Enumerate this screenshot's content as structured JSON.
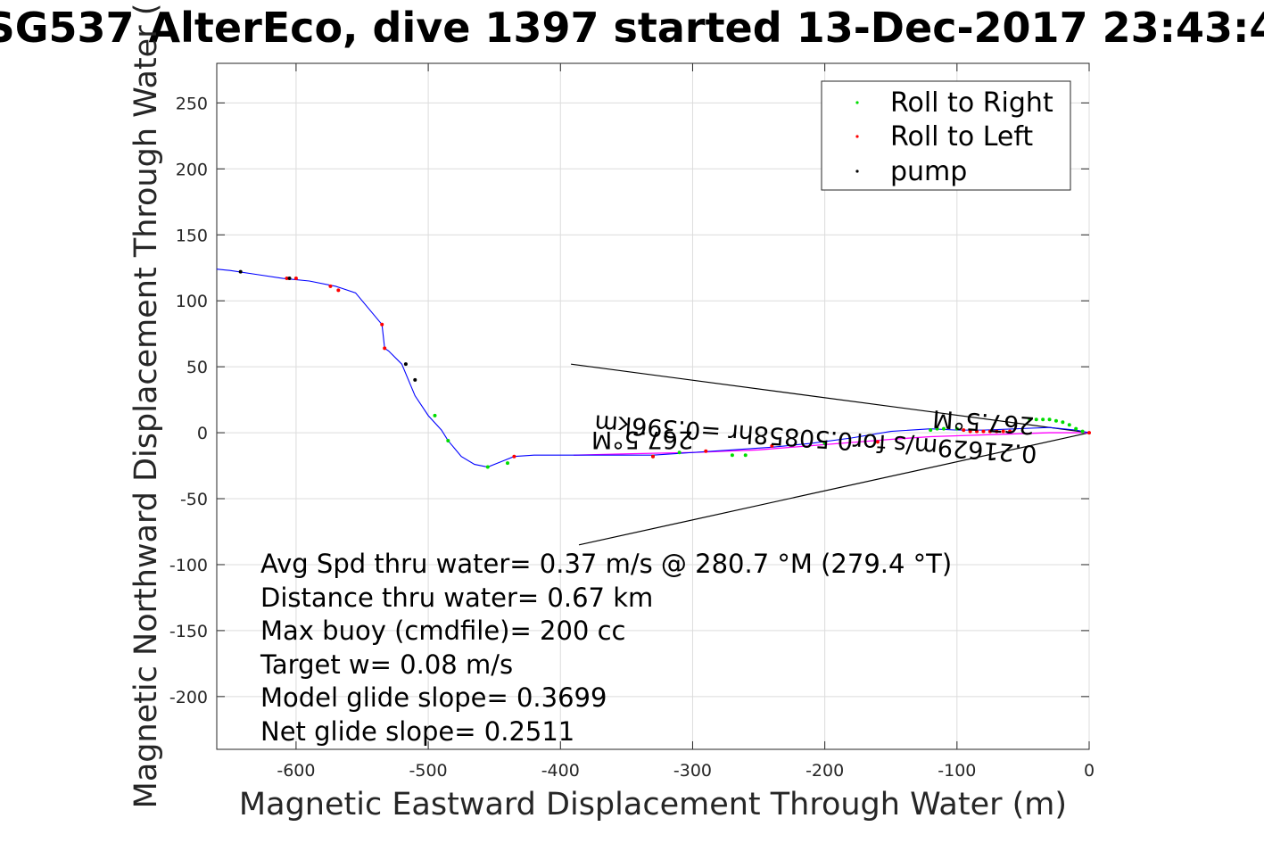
{
  "chart_data": {
    "type": "line",
    "title": "SG537 AlterEco, dive 1397 started 13-Dec-2017 23:43:4",
    "xlabel": "Magnetic Eastward Displacement Through Water (m)",
    "ylabel": "Magnetic Northward Displacement Through Water (",
    "xlim": [
      -660,
      0
    ],
    "ylim": [
      -240,
      280
    ],
    "xticks": [
      -600,
      -500,
      -400,
      -300,
      -200,
      -100,
      0
    ],
    "yticks": [
      -200,
      -150,
      -100,
      -50,
      0,
      50,
      100,
      150,
      200,
      250
    ],
    "grid": true,
    "legend": {
      "placement": "top-right",
      "entries": [
        "Roll to Right",
        "Roll to Left",
        "pump"
      ]
    },
    "colors": {
      "track": "#0000ff",
      "roll_right": "#00dd00",
      "roll_left": "#ff0000",
      "pump": "#000000",
      "current": "#ff00ff",
      "arrow": "#000000"
    },
    "track": {
      "name": "",
      "x": [
        0,
        -10,
        -30,
        -55,
        -80,
        -100,
        -120,
        -150,
        -180,
        -210,
        -240,
        -270,
        -300,
        -330,
        -360,
        -390,
        -420,
        -435,
        -445,
        -455,
        -465,
        -475,
        -485,
        -490,
        -500,
        -510,
        -515,
        -520,
        -530,
        -533,
        -535,
        -555,
        -570,
        -590,
        -610,
        -630,
        -650,
        -660
      ],
      "y": [
        0,
        2,
        4,
        3,
        2,
        2,
        3,
        1,
        -4,
        -8,
        -11,
        -13,
        -15,
        -17,
        -17,
        -17,
        -17,
        -18,
        -22,
        -26,
        -24,
        -18,
        -6,
        2,
        13,
        28,
        40,
        52,
        62,
        64,
        82,
        106,
        111,
        115,
        117,
        120,
        123,
        124
      ]
    },
    "current_track": {
      "x": [
        0,
        -30,
        -60,
        -90,
        -120,
        -150,
        -200,
        -250,
        -300,
        -350,
        -390
      ],
      "y": [
        0,
        0,
        -1,
        -2,
        -3,
        -5,
        -9,
        -13,
        -15,
        -16,
        -17
      ]
    },
    "roll_right_points": {
      "x": [
        -5,
        -10,
        -15,
        -20,
        -25,
        -30,
        -35,
        -40,
        -45,
        -100,
        -110,
        -115,
        -120,
        -200,
        -260,
        -270,
        -310,
        -330,
        -440,
        -455,
        -495,
        -485
      ],
      "y": [
        1,
        3,
        6,
        8,
        9,
        10,
        10,
        10,
        10,
        3,
        3,
        3,
        2,
        -8,
        -17,
        -17,
        -15,
        -18,
        -23,
        -26,
        13,
        -6
      ]
    },
    "roll_left_points": {
      "x": [
        0,
        -60,
        -65,
        -70,
        -75,
        -80,
        -85,
        -90,
        -95,
        -160,
        -240,
        -290,
        -330,
        -435,
        -535,
        -533,
        -568,
        -574,
        -600,
        -607
      ],
      "y": [
        0,
        1,
        1,
        1,
        1,
        1,
        1,
        1,
        2,
        -7,
        -10,
        -14,
        -18,
        -18,
        82,
        64,
        108,
        111,
        117,
        117
      ],
      "colors_note": ""
    },
    "pump_points": {
      "x": [
        -510,
        -517,
        -642,
        -605
      ],
      "y": [
        40,
        52,
        122,
        117
      ]
    },
    "current_arrow": {
      "shaft_from": [
        0,
        0
      ],
      "tip1": [
        -392,
        52
      ],
      "tip2": [
        -386,
        -85
      ]
    },
    "annotations": [
      "Avg Spd thru water=  0.37 m/s @ 280.7 °M (279.4 °T)",
      "Distance thru water=  0.67 km",
      "Max buoy (cmdfile)= 200 cc",
      "Target w= 0.08 m/s",
      "Model glide slope= 0.3699",
      "Net glide slope= 0.2511"
    ],
    "rotated_labels": {
      "near_line1": "0.21629m/s for0.50858hr =0.396km",
      "near_line2": "267.5°M",
      "left_line1": "267.5°M"
    }
  }
}
